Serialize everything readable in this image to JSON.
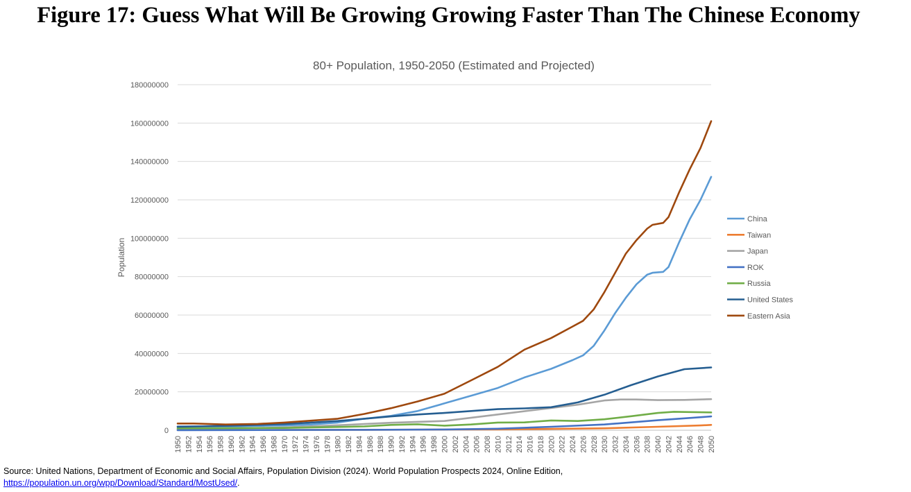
{
  "figure_title": "Figure 17: Guess What Will Be Growing Growing Faster Than The Chinese Economy",
  "source": {
    "text": "Source: United Nations, Department of Economic and Social Affairs, Population Division (2024). World Population Prospects 2024, Online Edition,",
    "link": "https://population.un.org/wpp/Download/Standard/MostUsed/",
    "link_suffix": "."
  },
  "chart_data": {
    "type": "line",
    "title": "80+ Population, 1950-2050 (Estimated and Projected)",
    "xlabel": "",
    "ylabel": "Population",
    "ylim": [
      0,
      180000000
    ],
    "yticks": [
      0,
      20000000,
      40000000,
      60000000,
      80000000,
      100000000,
      120000000,
      140000000,
      160000000,
      180000000
    ],
    "xlim": [
      1950,
      2050
    ],
    "xtick_step": 2,
    "grid": "horizontal",
    "legend_position": "right",
    "series": [
      {
        "name": "China",
        "color": "#5b9bd5",
        "x": [
          1950,
          1960,
          1970,
          1975,
          1980,
          1985,
          1990,
          1995,
          2000,
          2005,
          2010,
          2015,
          2020,
          2024,
          2026,
          2028,
          2030,
          2032,
          2034,
          2036,
          2038,
          2039,
          2041,
          2042,
          2044,
          2046,
          2048,
          2050
        ],
        "values": [
          2000000,
          2000000,
          2500000,
          3000000,
          4000000,
          6000000,
          7500000,
          10000000,
          14000000,
          18000000,
          22000000,
          27500000,
          32000000,
          36500000,
          39000000,
          44000000,
          52000000,
          61000000,
          69000000,
          76000000,
          81000000,
          82000000,
          82500000,
          85000000,
          98000000,
          110000000,
          120000000,
          132000000
        ]
      },
      {
        "name": "Taiwan",
        "color": "#ed7d31",
        "x": [
          1950,
          1970,
          1990,
          2000,
          2010,
          2020,
          2030,
          2040,
          2048,
          2050
        ],
        "values": [
          100000,
          150000,
          250000,
          350000,
          450000,
          700000,
          1000000,
          1800000,
          2500000,
          2800000
        ]
      },
      {
        "name": "Japan",
        "color": "#a5a5a5",
        "x": [
          1950,
          1960,
          1970,
          1980,
          1990,
          2000,
          2010,
          2015,
          2020,
          2025,
          2030,
          2033,
          2036,
          2040,
          2045,
          2050
        ],
        "values": [
          600000,
          900000,
          1500000,
          2600000,
          3900000,
          4800000,
          8200000,
          9900000,
          11600000,
          13300000,
          15500000,
          16000000,
          16000000,
          15700000,
          15800000,
          16200000
        ]
      },
      {
        "name": "ROK",
        "color": "#4472c4",
        "x": [
          1950,
          1985,
          2000,
          2010,
          2020,
          2030,
          2040,
          2050
        ],
        "values": [
          50000,
          200000,
          400000,
          800000,
          1800000,
          3000000,
          5200000,
          7200000
        ]
      },
      {
        "name": "Russia",
        "color": "#70ad47",
        "x": [
          1950,
          1970,
          1975,
          1980,
          1985,
          1990,
          1995,
          2000,
          2005,
          2010,
          2015,
          2020,
          2025,
          2030,
          2035,
          2040,
          2043,
          2050
        ],
        "values": [
          1000000,
          1200000,
          1500000,
          1700000,
          2000000,
          2800000,
          3100000,
          2400000,
          3000000,
          4000000,
          4100000,
          5100000,
          4800000,
          5700000,
          7300000,
          9000000,
          9600000,
          9300000
        ]
      },
      {
        "name": "United States",
        "color": "#255e91",
        "x": [
          1950,
          1960,
          1970,
          1975,
          1980,
          1985,
          1990,
          1995,
          2000,
          2005,
          2010,
          2015,
          2020,
          2025,
          2030,
          2035,
          2040,
          2045,
          2050
        ],
        "values": [
          1800000,
          2400000,
          3200000,
          4000000,
          4800000,
          6000000,
          7200000,
          8200000,
          9000000,
          10000000,
          11000000,
          11400000,
          12000000,
          14500000,
          18500000,
          23500000,
          28000000,
          31800000,
          32700000
        ]
      },
      {
        "name": "Eastern Asia",
        "color": "#9e480e",
        "x": [
          1950,
          1953,
          1959,
          1965,
          1970,
          1975,
          1980,
          1985,
          1990,
          1995,
          2000,
          2005,
          2010,
          2015,
          2020,
          2024,
          2026,
          2028,
          2030,
          2032,
          2034,
          2036,
          2038,
          2039,
          2041,
          2042,
          2044,
          2046,
          2048,
          2050
        ],
        "values": [
          3500000,
          3500000,
          3000000,
          3300000,
          4000000,
          5000000,
          6000000,
          8500000,
          11500000,
          15000000,
          19000000,
          26000000,
          33000000,
          42000000,
          48000000,
          54000000,
          57000000,
          63000000,
          72000000,
          82000000,
          92000000,
          99000000,
          105000000,
          107000000,
          108000000,
          111000000,
          124000000,
          136000000,
          147000000,
          161000000
        ]
      }
    ]
  }
}
